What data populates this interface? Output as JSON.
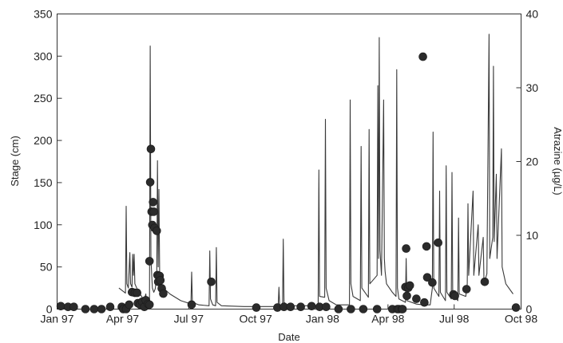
{
  "chart_data": {
    "type": "line+scatter",
    "xlabel": "Date",
    "ylabel_left": "Stage (cm)",
    "ylabel_right": "Atrazine (µg/L)",
    "xlim": [
      "1997-01-01",
      "1998-10-01"
    ],
    "ylim_left": [
      0,
      350
    ],
    "ylim_right": [
      0,
      40
    ],
    "grid": false,
    "x_ticks": [
      {
        "date": "1997-01-01",
        "label": "Jan 97"
      },
      {
        "date": "1997-04-01",
        "label": "Apr 97"
      },
      {
        "date": "1997-07-01",
        "label": "Jul 97"
      },
      {
        "date": "1997-10-01",
        "label": "Oct 97"
      },
      {
        "date": "1998-01-01",
        "label": "Jan 98"
      },
      {
        "date": "1998-04-01",
        "label": "Apr 98"
      },
      {
        "date": "1998-07-01",
        "label": "Jul 98"
      },
      {
        "date": "1998-10-01",
        "label": "Oct 98"
      }
    ],
    "y_left_ticks": [
      "0",
      "50",
      "100",
      "150",
      "200",
      "250",
      "300",
      "350"
    ],
    "y_right_ticks": [
      "0",
      "10",
      "20",
      "30",
      "40"
    ],
    "series": [
      {
        "kind": "line",
        "axis": "left",
        "points": [
          [
            "1997-03-27",
            25
          ],
          [
            "1997-04-05",
            19
          ],
          [
            "1997-04-06",
            122
          ],
          [
            "1997-04-07",
            30
          ],
          [
            "1997-04-09",
            25
          ],
          [
            "1997-04-11",
            67
          ],
          [
            "1997-04-12",
            30
          ],
          [
            "1997-04-14",
            26
          ],
          [
            "1997-04-15",
            65
          ],
          [
            "1997-04-16",
            40
          ],
          [
            "1997-04-17",
            65
          ],
          [
            "1997-04-18",
            30
          ],
          [
            "1997-04-22",
            22
          ],
          [
            "1997-04-28",
            14
          ],
          [
            "1997-05-01",
            12
          ],
          [
            "1997-05-03",
            18
          ],
          [
            "1997-05-04",
            8
          ],
          [
            "1997-05-08",
            7
          ],
          [
            "1997-05-09",
            312
          ],
          [
            "1997-05-10",
            60
          ],
          [
            "1997-05-12",
            25
          ],
          [
            "1997-05-14",
            20
          ],
          [
            "1997-05-16",
            24
          ],
          [
            "1997-05-18",
            40
          ],
          [
            "1997-05-19",
            176
          ],
          [
            "1997-05-20",
            50
          ],
          [
            "1997-05-21",
            142
          ],
          [
            "1997-05-22",
            45
          ],
          [
            "1997-05-26",
            26
          ],
          [
            "1997-06-05",
            18
          ],
          [
            "1997-06-20",
            10
          ],
          [
            "1997-07-01",
            7
          ],
          [
            "1997-07-04",
            6
          ],
          [
            "1997-07-05",
            44
          ],
          [
            "1997-07-06",
            8
          ],
          [
            "1997-07-15",
            5
          ],
          [
            "1997-07-29",
            4
          ],
          [
            "1997-07-30",
            69
          ],
          [
            "1997-07-31",
            12
          ],
          [
            "1997-08-03",
            5
          ],
          [
            "1997-08-07",
            4
          ],
          [
            "1997-08-08",
            73
          ],
          [
            "1997-08-09",
            8
          ],
          [
            "1997-08-15",
            4
          ],
          [
            "1997-09-15",
            3
          ],
          [
            "1997-10-15",
            3
          ],
          [
            "1997-11-01",
            3
          ],
          [
            "1997-11-02",
            26
          ],
          [
            "1997-11-03",
            5
          ],
          [
            "1997-11-07",
            3
          ],
          [
            "1997-11-08",
            83
          ],
          [
            "1997-11-09",
            8
          ],
          [
            "1997-11-15",
            4
          ],
          [
            "1997-12-15",
            4
          ],
          [
            "1997-12-26",
            4
          ],
          [
            "1997-12-27",
            165
          ],
          [
            "1997-12-28",
            15
          ],
          [
            "1998-01-04",
            14
          ],
          [
            "1998-01-05",
            225
          ],
          [
            "1998-01-06",
            25
          ],
          [
            "1998-01-10",
            10
          ],
          [
            "1998-01-20",
            5
          ],
          [
            "1998-02-07",
            5
          ],
          [
            "1998-02-08",
            248
          ],
          [
            "1998-02-09",
            30
          ],
          [
            "1998-02-12",
            15
          ],
          [
            "1998-02-22",
            10
          ],
          [
            "1998-02-23",
            193
          ],
          [
            "1998-02-24",
            25
          ],
          [
            "1998-03-05",
            14
          ],
          [
            "1998-03-06",
            213
          ],
          [
            "1998-03-07",
            30
          ],
          [
            "1998-03-17",
            40
          ],
          [
            "1998-03-18",
            265
          ],
          [
            "1998-03-19",
            60
          ],
          [
            "1998-03-20",
            322
          ],
          [
            "1998-03-21",
            70
          ],
          [
            "1998-03-23",
            40
          ],
          [
            "1998-03-26",
            248
          ],
          [
            "1998-03-27",
            60
          ],
          [
            "1998-03-28",
            45
          ],
          [
            "1998-03-30",
            30
          ],
          [
            "1998-04-07",
            20
          ],
          [
            "1998-04-12",
            15
          ],
          [
            "1998-04-13",
            284
          ],
          [
            "1998-04-14",
            25
          ],
          [
            "1998-04-16",
            12
          ],
          [
            "1998-04-25",
            8
          ],
          [
            "1998-04-26",
            60
          ],
          [
            "1998-04-27",
            10
          ],
          [
            "1998-05-10",
            6
          ],
          [
            "1998-05-20",
            5
          ],
          [
            "1998-05-29",
            5
          ],
          [
            "1998-06-01",
            25
          ],
          [
            "1998-06-02",
            210
          ],
          [
            "1998-06-03",
            25
          ],
          [
            "1998-06-10",
            15
          ],
          [
            "1998-06-11",
            140
          ],
          [
            "1998-06-12",
            20
          ],
          [
            "1998-06-19",
            10
          ],
          [
            "1998-06-20",
            170
          ],
          [
            "1998-06-21",
            20
          ],
          [
            "1998-06-27",
            12
          ],
          [
            "1998-06-28",
            162
          ],
          [
            "1998-06-29",
            18
          ],
          [
            "1998-07-06",
            10
          ],
          [
            "1998-07-07",
            108
          ],
          [
            "1998-07-08",
            18
          ],
          [
            "1998-07-17",
            15
          ],
          [
            "1998-07-19",
            30
          ],
          [
            "1998-07-20",
            125
          ],
          [
            "1998-07-21",
            40
          ],
          [
            "1998-07-27",
            140
          ],
          [
            "1998-07-28",
            40
          ],
          [
            "1998-08-03",
            100
          ],
          [
            "1998-08-04",
            40
          ],
          [
            "1998-08-10",
            85
          ],
          [
            "1998-08-11",
            30
          ],
          [
            "1998-08-15",
            42
          ],
          [
            "1998-08-18",
            326
          ],
          [
            "1998-08-19",
            60
          ],
          [
            "1998-08-23",
            85
          ],
          [
            "1998-08-24",
            288
          ],
          [
            "1998-08-25",
            80
          ],
          [
            "1998-08-28",
            160
          ],
          [
            "1998-08-29",
            60
          ],
          [
            "1998-09-04",
            190
          ],
          [
            "1998-09-05",
            50
          ],
          [
            "1998-09-10",
            30
          ],
          [
            "1998-09-20",
            18
          ]
        ]
      },
      {
        "kind": "scatter",
        "axis": "right",
        "points": [
          [
            "1997-01-06",
            0.4
          ],
          [
            "1997-01-16",
            0.3
          ],
          [
            "1997-01-24",
            0.3
          ],
          [
            "1997-02-09",
            0.0
          ],
          [
            "1997-02-21",
            0.0
          ],
          [
            "1997-03-03",
            0.0
          ],
          [
            "1997-03-15",
            0.3
          ],
          [
            "1997-03-31",
            0.3
          ],
          [
            "1997-04-02",
            0.0
          ],
          [
            "1997-04-06",
            0.0
          ],
          [
            "1997-04-10",
            0.6
          ],
          [
            "1997-04-14",
            2.3
          ],
          [
            "1997-04-18",
            2.2
          ],
          [
            "1997-04-21",
            2.2
          ],
          [
            "1997-04-22",
            0.8
          ],
          [
            "1997-04-25",
            0.6
          ],
          [
            "1997-04-28",
            1.0
          ],
          [
            "1997-05-01",
            0.3
          ],
          [
            "1997-05-03",
            1.2
          ],
          [
            "1997-05-06",
            0.7
          ],
          [
            "1997-05-08",
            0.6
          ],
          [
            "1997-05-08",
            6.5
          ],
          [
            "1997-05-09",
            17.2
          ],
          [
            "1997-05-10",
            21.7
          ],
          [
            "1997-05-11",
            13.2
          ],
          [
            "1997-05-12",
            11.4
          ],
          [
            "1997-05-13",
            14.5
          ],
          [
            "1997-05-14",
            13.2
          ],
          [
            "1997-05-15",
            11.0
          ],
          [
            "1997-05-18",
            10.6
          ],
          [
            "1997-05-19",
            4.6
          ],
          [
            "1997-05-20",
            3.7
          ],
          [
            "1997-05-22",
            4.5
          ],
          [
            "1997-05-23",
            3.9
          ],
          [
            "1997-05-25",
            2.8
          ],
          [
            "1997-05-27",
            2.1
          ],
          [
            "1997-07-05",
            0.6
          ],
          [
            "1997-08-01",
            3.7
          ],
          [
            "1997-10-02",
            0.2
          ],
          [
            "1997-10-31",
            0.2
          ],
          [
            "1997-11-09",
            0.3
          ],
          [
            "1997-11-18",
            0.3
          ],
          [
            "1997-12-02",
            0.3
          ],
          [
            "1997-12-17",
            0.4
          ],
          [
            "1997-12-28",
            0.3
          ],
          [
            "1998-01-06",
            0.3
          ],
          [
            "1998-01-23",
            0.0
          ],
          [
            "1998-02-09",
            0.0
          ],
          [
            "1998-02-26",
            0.0
          ],
          [
            "1998-03-17",
            0.0
          ],
          [
            "1998-04-07",
            0.0
          ],
          [
            "1998-04-14",
            0.0
          ],
          [
            "1998-04-16",
            0.0
          ],
          [
            "1998-04-20",
            0.0
          ],
          [
            "1998-04-21",
            0.0
          ],
          [
            "1998-04-25",
            3.0
          ],
          [
            "1998-04-26",
            8.2
          ],
          [
            "1998-04-27",
            1.8
          ],
          [
            "1998-04-29",
            2.9
          ],
          [
            "1998-05-01",
            3.2
          ],
          [
            "1998-05-10",
            1.4
          ],
          [
            "1998-05-19",
            34.2
          ],
          [
            "1998-05-21",
            0.9
          ],
          [
            "1998-05-24",
            8.5
          ],
          [
            "1998-05-25",
            4.3
          ],
          [
            "1998-06-01",
            3.6
          ],
          [
            "1998-06-09",
            9.0
          ],
          [
            "1998-06-30",
            2.0
          ],
          [
            "1998-07-02",
            1.8
          ],
          [
            "1998-07-18",
            2.7
          ],
          [
            "1998-08-12",
            3.7
          ],
          [
            "1998-09-24",
            0.2
          ]
        ]
      }
    ]
  }
}
